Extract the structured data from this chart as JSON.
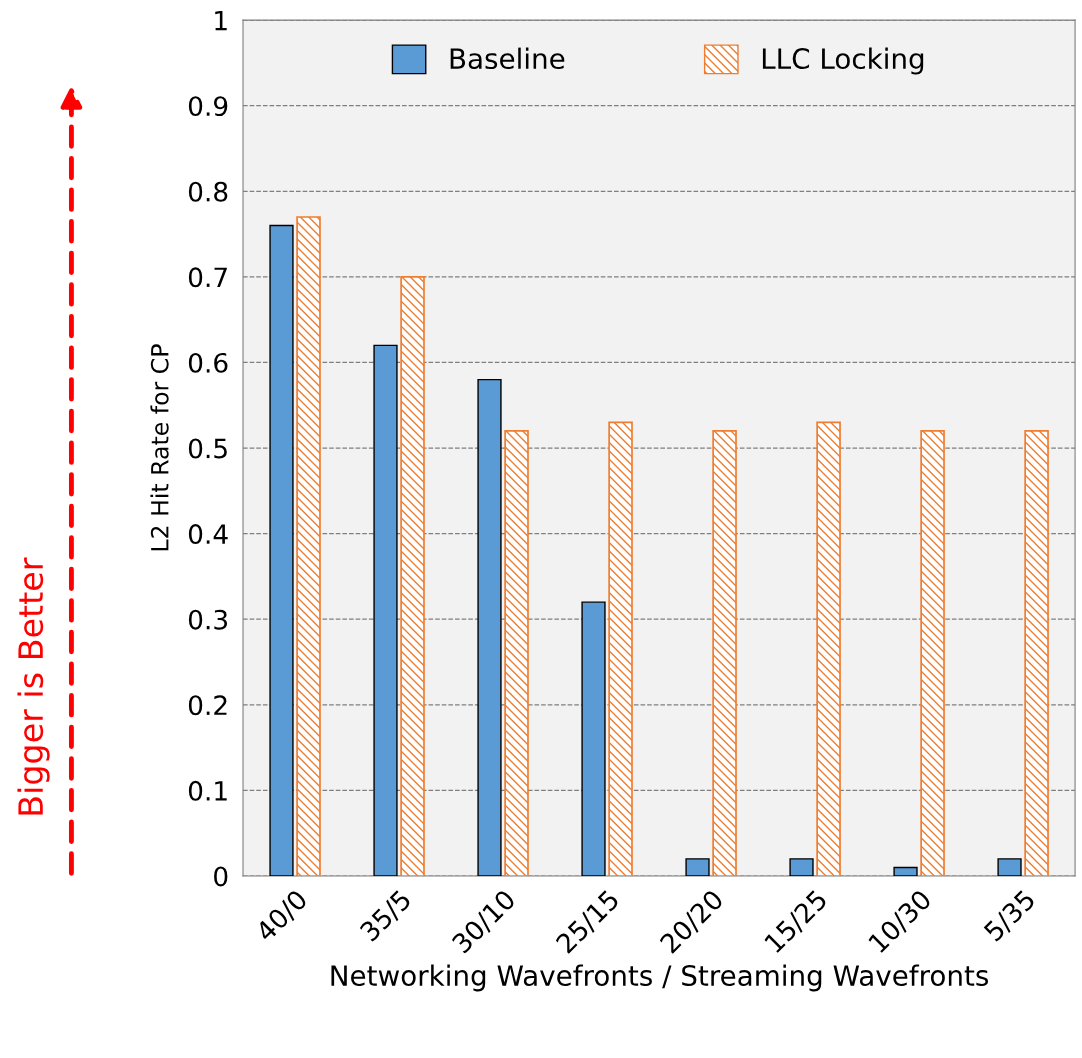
{
  "chart_data": {
    "type": "bar",
    "xlabel": "Networking Wavefronts / Streaming Wavefronts",
    "ylabel": "L2 Hit Rate for CP",
    "categories": [
      "40/0",
      "35/5",
      "30/10",
      "25/15",
      "20/20",
      "15/25",
      "10/30",
      "5/35"
    ],
    "series": [
      {
        "name": "Baseline",
        "color": "#5b9bd5",
        "values": [
          0.76,
          0.62,
          0.58,
          0.32,
          0.02,
          0.02,
          0.01,
          0.02
        ]
      },
      {
        "name": "LLC Locking",
        "color": "#ed7d31",
        "values": [
          0.77,
          0.7,
          0.52,
          0.53,
          0.52,
          0.53,
          0.52,
          0.52
        ]
      }
    ],
    "ylim": [
      0,
      1
    ],
    "yticks": [
      0,
      0.1,
      0.2,
      0.3,
      0.4,
      0.5,
      0.6,
      0.7,
      0.8,
      0.9,
      1
    ],
    "grid": "y",
    "legend": "top",
    "annotations": [
      "Bigger is Better"
    ]
  }
}
